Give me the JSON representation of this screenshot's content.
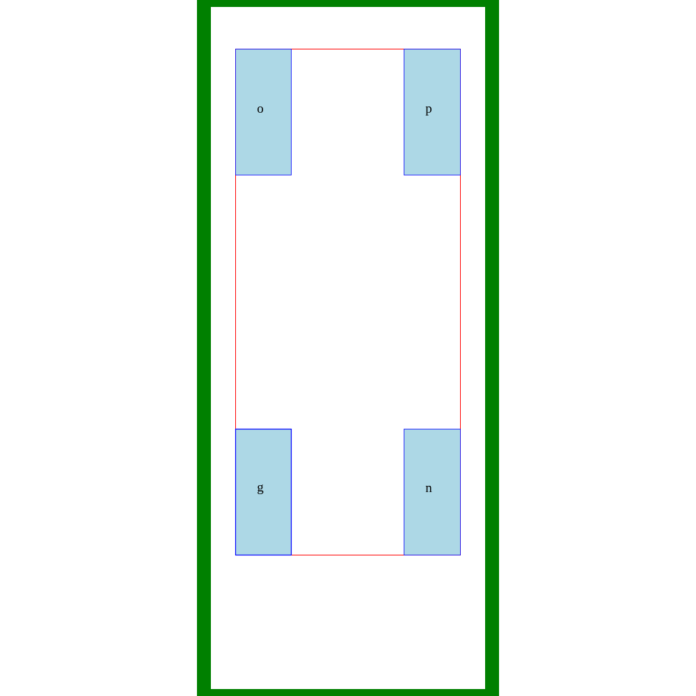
{
  "diagram": {
    "frame_color": "#008000",
    "outline_color": "#ff0000",
    "box_fill": "#add8e6",
    "box_stroke": "#0000ff",
    "boxes": [
      {
        "id": "o",
        "label": "o"
      },
      {
        "id": "p",
        "label": "p"
      },
      {
        "id": "g",
        "label": "g"
      },
      {
        "id": "n",
        "label": "n"
      }
    ]
  }
}
